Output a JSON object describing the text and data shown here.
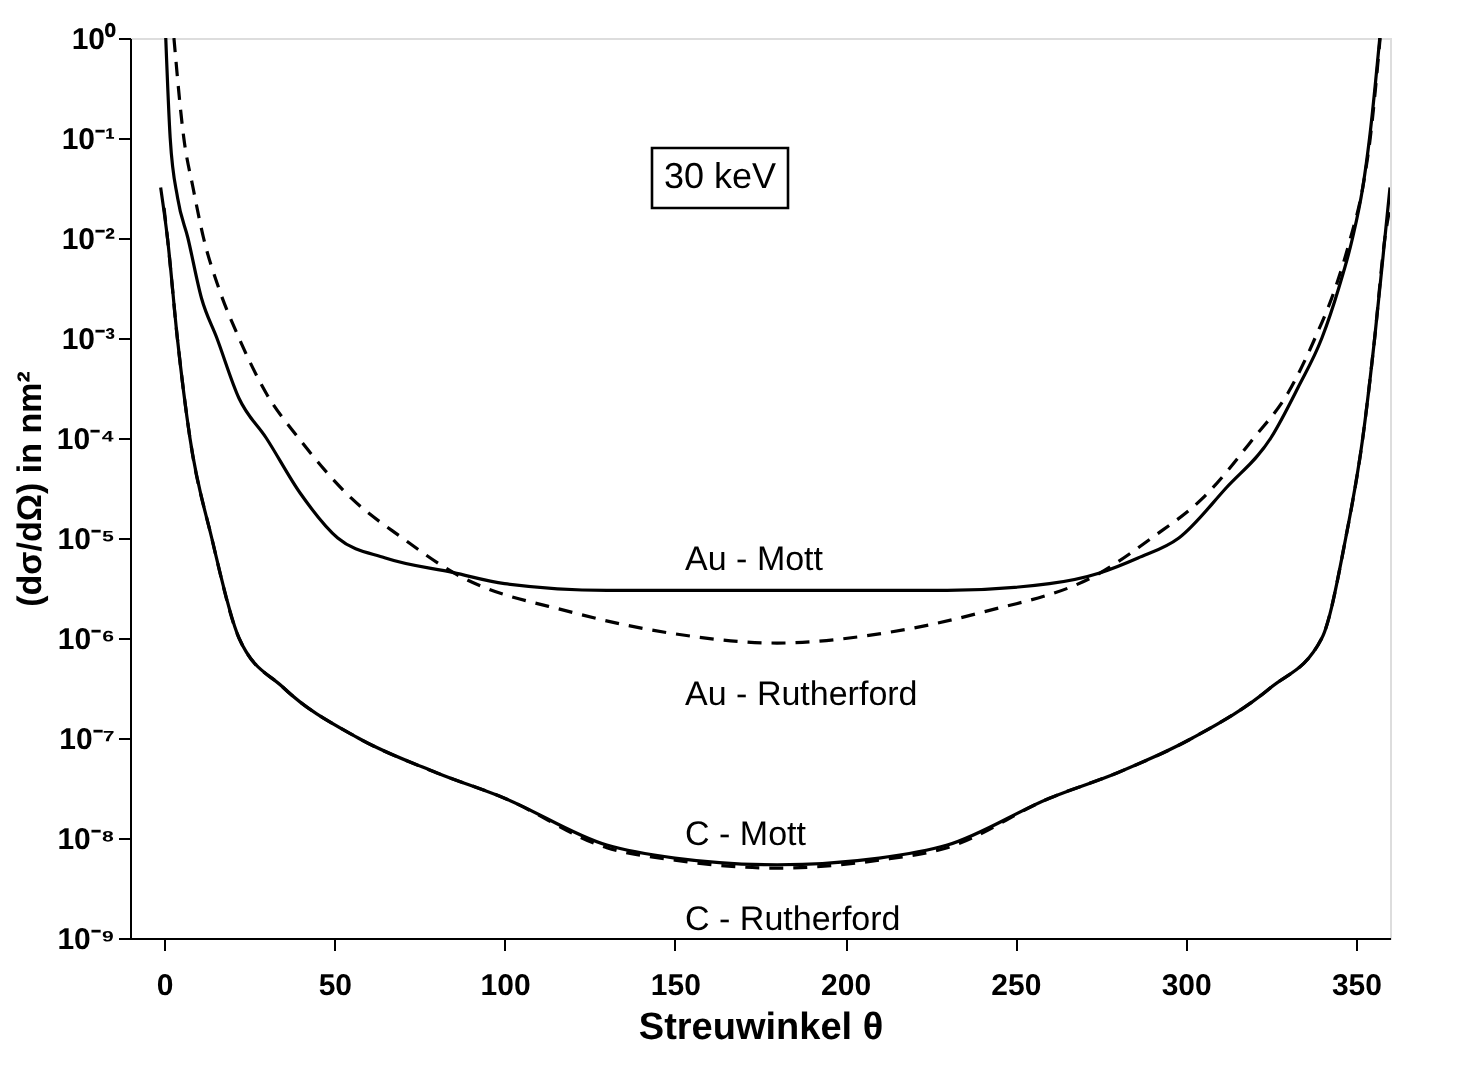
{
  "chart_data": {
    "type": "line",
    "xlabel": "Streuwinkel  θ",
    "ylabel": "(dσ/dΩ) in nm²",
    "log": true,
    "grid": false,
    "legend": false,
    "marker": "none",
    "xlim": [
      -10,
      360
    ],
    "xticks": [
      0,
      50,
      100,
      150,
      200,
      250,
      300,
      350
    ],
    "ylim": [
      1e-09,
      1
    ],
    "yticks": [
      {
        "value": 1e-09,
        "label": "10⁻⁹"
      },
      {
        "value": 1e-08,
        "label": "10⁻⁸"
      },
      {
        "value": 1e-07,
        "label": "10⁻⁷"
      },
      {
        "value": 1e-06,
        "label": "10⁻⁶"
      },
      {
        "value": 1e-05,
        "label": "10⁻⁵"
      },
      {
        "value": 0.0001,
        "label": "10⁻⁴"
      },
      {
        "value": 0.001,
        "label": "10⁻³"
      },
      {
        "value": 0.01,
        "label": "10⁻²"
      },
      {
        "value": 0.1,
        "label": "10⁻¹"
      },
      {
        "value": 1,
        "label": "10⁰"
      }
    ],
    "annotations": [
      "30 keV"
    ],
    "series": [
      {
        "name": "Au - Mott",
        "color": "#000000",
        "line_style": "solid",
        "x": [
          0.5,
          1.8,
          4,
          7,
          11,
          15.5,
          22,
          30,
          40,
          51,
          65,
          85,
          100,
          130,
          180,
          230,
          260,
          275,
          286,
          298,
          312,
          325,
          333,
          340,
          345,
          349,
          352,
          354,
          357
        ],
        "values": [
          1,
          0.1,
          0.025,
          0.01,
          0.0025,
          0.001,
          0.00025,
          0.0001,
          2.8e-05,
          1e-05,
          6.3e-06,
          4.5e-06,
          3.5e-06,
          3e-06,
          3e-06,
          3e-06,
          3.5e-06,
          4.5e-06,
          6.3e-06,
          1e-05,
          3.2e-05,
          0.0001,
          0.00032,
          0.001,
          0.0032,
          0.01,
          0.032,
          0.1,
          1
        ]
      },
      {
        "name": "Au - Rutherford",
        "color": "#000000",
        "line_style": "dashed",
        "x": [
          2.9,
          5.8,
          8.5,
          11.6,
          16,
          22,
          30,
          39.5,
          55,
          70,
          85,
          120,
          150,
          180,
          210,
          240,
          275,
          290,
          305,
          320,
          330,
          338,
          344,
          348.4,
          352,
          354.2,
          357.1
        ],
        "values": [
          1,
          0.1,
          0.032,
          0.01,
          0.0032,
          0.001,
          0.00028,
          0.0001,
          2.5e-05,
          1e-05,
          4.5e-06,
          1.8e-06,
          1.1e-06,
          8.9e-07,
          1.1e-06,
          1.8e-06,
          4.5e-06,
          1e-05,
          2.5e-05,
          0.0001,
          0.00028,
          0.001,
          0.0032,
          0.01,
          0.032,
          0.1,
          1
        ]
      },
      {
        "name": "C - Mott",
        "color": "#000000",
        "line_style": "solid",
        "x": [
          -1,
          1,
          3.9,
          7.6,
          14,
          22,
          35,
          57,
          80,
          100,
          130,
          150,
          180,
          210,
          230,
          260,
          280,
          302,
          325,
          340,
          347,
          352,
          355.5,
          358.5,
          360
        ],
        "values": [
          0.032,
          0.01,
          0.001,
          0.0001,
          1e-05,
          1e-06,
          3.2e-07,
          1e-07,
          4.5e-08,
          2.5e-08,
          8.5e-09,
          6.3e-09,
          5.4e-09,
          6.3e-09,
          8.5e-09,
          2.5e-08,
          4.5e-08,
          1e-07,
          3.2e-07,
          1e-06,
          1e-05,
          0.0001,
          0.001,
          0.01,
          0.032
        ]
      },
      {
        "name": "C - Rutherford",
        "color": "#000000",
        "line_style": "dashed",
        "x": [
          0,
          1,
          3.9,
          7.6,
          14,
          22,
          35,
          57,
          80,
          100,
          130,
          150,
          180,
          210,
          230,
          260,
          280,
          302,
          325,
          340,
          347,
          352,
          355.5,
          358.5,
          360
        ],
        "values": [
          0.02,
          0.01,
          0.001,
          0.0001,
          1e-05,
          1e-06,
          3.2e-07,
          1e-07,
          4.5e-08,
          2.5e-08,
          8e-09,
          6e-09,
          5e-09,
          6e-09,
          8e-09,
          2.5e-08,
          4.5e-08,
          1e-07,
          3.2e-07,
          1e-06,
          1e-05,
          0.0001,
          0.001,
          0.01,
          0.02
        ]
      }
    ]
  }
}
